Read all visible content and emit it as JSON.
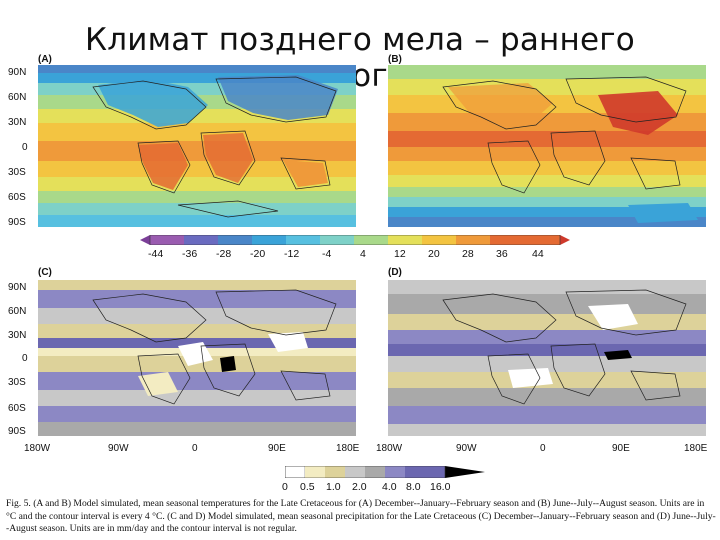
{
  "slide_title": "Климат позднего мела – раннего палеогена",
  "panels": {
    "a": "(A)",
    "b": "(B)",
    "c": "(C)",
    "d": "(D)"
  },
  "lat_ticks": [
    "90N",
    "60N",
    "30N",
    "0",
    "30S",
    "60S",
    "90S"
  ],
  "lat_ticks_bottom": [
    "90N",
    "60N",
    "30N",
    "0",
    "30S",
    "60S",
    "90S"
  ],
  "lon_ticks_left": [
    "180W",
    "90W",
    "0",
    "90E",
    "180E"
  ],
  "lon_ticks_right": [
    "180W",
    "90W",
    "0",
    "90E",
    "180E"
  ],
  "temp_colorbar": {
    "labels": [
      "-44",
      "-36",
      "-28",
      "-20",
      "-12",
      "-4",
      "4",
      "12",
      "20",
      "28",
      "36",
      "44"
    ],
    "colors": [
      "#7b3f98",
      "#9a5cb0",
      "#6a6bc0",
      "#4a86c8",
      "#3aa3d8",
      "#57c0e0",
      "#7ed1c8",
      "#a9d98a",
      "#e4e05a",
      "#f3c441",
      "#ef9a3a",
      "#e46a33",
      "#cf3a2b"
    ]
  },
  "precip_colorbar": {
    "labels": [
      "0",
      "0.5",
      "1.0",
      "2.0",
      "4.0",
      "8.0",
      "16.0"
    ],
    "colors": [
      "#ffffff",
      "#f3ecc2",
      "#ddd29a",
      "#c8c8c8",
      "#a9a9a9",
      "#8c88c4",
      "#6b67b0",
      "#000000"
    ]
  },
  "caption": "Fig. 5. (A and B) Model simulated, mean seasonal temperatures for the Late Cretaceous for (A) December--January--February season and (B) June--July--August season. Units are in °C and the contour interval is every 4 °C. (C and D) Model simulated, mean seasonal precipitation for the Late Cretaceous (C) December--January--February season and (D) June--July--August season. Units are in mm/day and the contour interval is not regular."
}
